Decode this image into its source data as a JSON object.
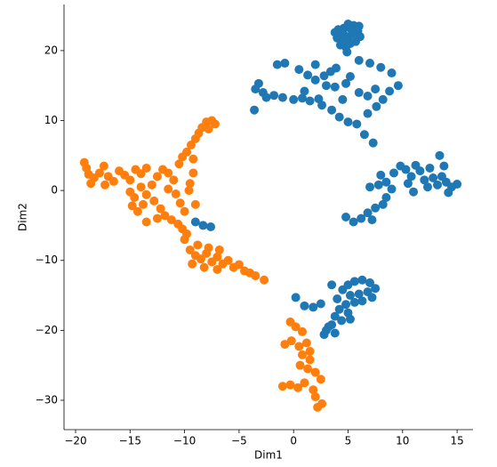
{
  "chart_data": {
    "type": "scatter",
    "x_label": "Dim1",
    "y_label": "Dim2",
    "xlim": [
      -21.06,
      16.46
    ],
    "ylim": [
      -34.2,
      26.6
    ],
    "xticks": [
      {
        "value": -20,
        "label": "−20"
      },
      {
        "value": -15,
        "label": "−15"
      },
      {
        "value": -10,
        "label": "−10"
      },
      {
        "value": -5,
        "label": "−5"
      },
      0,
      5,
      10,
      15
    ],
    "yticks": [
      {
        "value": -30,
        "label": "−30"
      },
      {
        "value": -20,
        "label": "−20"
      },
      {
        "value": -10,
        "label": "−10"
      },
      0,
      10,
      20
    ],
    "grid": false,
    "series": [
      {
        "color": "#1f77b4",
        "x": [
          4.2,
          4.6,
          5.0,
          5.5,
          6.0,
          4.0,
          4.5,
          5.0,
          5.4,
          5.9,
          3.8,
          4.3,
          4.8,
          5.2,
          4.6,
          6.1,
          5.7,
          4.9,
          4.1,
          5.3,
          -3.5,
          -3.2,
          -2.8,
          -3.6,
          -2.5,
          -1.8,
          -1.0,
          0.0,
          0.8,
          1.5,
          2.3,
          2.6,
          -1.5,
          -0.8,
          0.5,
          1.3,
          2.0,
          2.8,
          3.4,
          3.9,
          3.0,
          3.8,
          4.5,
          3.5,
          4.2,
          5.0,
          5.8,
          6.5,
          7.3,
          6.0,
          7.0,
          8.0,
          9.0,
          9.6,
          8.8,
          8.2,
          7.6,
          6.8,
          6.0,
          6.8,
          7.5,
          5.2,
          4.8,
          2.0,
          1.0,
          7.0,
          7.8,
          8.5,
          9.2,
          9.8,
          10.3,
          10.8,
          11.2,
          11.6,
          12.0,
          12.3,
          12.8,
          13.2,
          13.6,
          14.0,
          14.5,
          15.0,
          13.8,
          13.4,
          12.5,
          10.5,
          9.0,
          11.0,
          14.2,
          8.0,
          4.8,
          5.5,
          6.2,
          6.8,
          7.5,
          8.2,
          8.5,
          7.2,
          -9.0,
          -8.3,
          -7.6,
          5.0,
          5.6,
          6.3,
          7.0,
          7.5,
          6.8,
          6.0,
          5.2,
          4.5,
          4.0,
          4.8,
          5.6,
          6.3,
          7.2,
          4.2,
          5.0,
          3.8,
          4.4,
          5.2,
          3.5,
          3.0,
          3.8,
          2.8,
          3.2,
          3.5,
          0.2,
          1.0,
          1.8,
          2.5
        ],
        "y": [
          22.5,
          23.2,
          23.8,
          23.6,
          23.5,
          21.8,
          21.5,
          21.9,
          22.4,
          22.8,
          22.6,
          20.8,
          20.5,
          21.0,
          22.3,
          22.0,
          21.3,
          19.8,
          23.0,
          23.0,
          14.5,
          15.3,
          14.0,
          11.5,
          13.3,
          13.6,
          13.3,
          13.0,
          13.2,
          12.8,
          13.1,
          12.2,
          18.0,
          18.2,
          17.3,
          16.5,
          15.8,
          16.4,
          17.0,
          17.5,
          15.0,
          14.8,
          13.0,
          11.5,
          10.5,
          9.8,
          9.5,
          8.0,
          6.8,
          18.6,
          18.2,
          17.6,
          16.8,
          15.0,
          14.2,
          13.0,
          12.0,
          11.0,
          14.0,
          13.5,
          14.5,
          16.3,
          15.3,
          18.0,
          14.2,
          0.5,
          0.8,
          1.2,
          2.5,
          3.5,
          3.0,
          2.0,
          3.6,
          2.8,
          1.5,
          0.5,
          1.8,
          0.8,
          2.0,
          1.2,
          0.5,
          0.9,
          3.5,
          5.0,
          3.2,
          1.0,
          0.2,
          -0.2,
          -0.3,
          2.2,
          -3.8,
          -4.5,
          -4.0,
          -3.2,
          -2.5,
          -2.0,
          -1.0,
          -4.2,
          -4.5,
          -5.0,
          -5.2,
          -13.5,
          -13.0,
          -12.8,
          -13.2,
          -14.0,
          -14.5,
          -14.8,
          -15.0,
          -14.2,
          -15.5,
          -16.3,
          -16.0,
          -15.8,
          -15.3,
          -17.0,
          -17.5,
          -18.0,
          -18.6,
          -18.4,
          -19.2,
          -20.0,
          -20.4,
          -20.6,
          -19.5,
          -13.5,
          -15.3,
          -16.5,
          -16.7,
          -16.2
        ]
      },
      {
        "color": "#ff7f0e",
        "x": [
          -19.2,
          -19.0,
          -18.8,
          -18.3,
          -17.8,
          -17.4,
          -17.0,
          -16.5,
          -16.0,
          -15.5,
          -15.0,
          -14.5,
          -14.0,
          -13.5,
          -18.6,
          -17.3,
          -15.0,
          -14.6,
          -14.8,
          -14.3,
          -13.8,
          -13.5,
          -13.0,
          -12.5,
          -12.0,
          -11.5,
          -11.0,
          -12.8,
          -12.2,
          -11.8,
          -11.2,
          -10.6,
          -10.2,
          -9.8,
          -10.0,
          -10.4,
          -10.8,
          -9.5,
          -9.2,
          -9.6,
          -9.0,
          -12.5,
          -13.5,
          -14.0,
          -11.5,
          -10.0,
          -10.5,
          -10.2,
          -9.8,
          -9.4,
          -9.0,
          -8.7,
          -8.4,
          -8.0,
          -7.5,
          -7.2,
          -7.8,
          -9.2,
          -9.5,
          -9.0,
          -8.5,
          -8.0,
          -7.5,
          -7.0,
          -6.5,
          -6.0,
          -5.5,
          -5.0,
          -4.5,
          -4.0,
          -3.5,
          -2.7,
          -8.8,
          -7.8,
          -6.8,
          -8.2,
          -7.0,
          -9.3,
          -0.3,
          0.2,
          0.8,
          -0.8,
          -0.2,
          0.5,
          1.2,
          0.8,
          1.5,
          0.6,
          1.3,
          2.0,
          -1.0,
          -0.3,
          0.4,
          1.0,
          1.8,
          2.5,
          2.0,
          2.6,
          2.2,
          1.5
        ],
        "y": [
          4.0,
          3.2,
          2.3,
          1.8,
          2.5,
          3.5,
          2.0,
          1.3,
          2.8,
          2.2,
          1.5,
          3.0,
          2.4,
          3.2,
          1.0,
          0.8,
          -0.2,
          -1.0,
          -2.2,
          -3.0,
          -2.0,
          -0.6,
          0.8,
          2.0,
          3.0,
          2.5,
          1.5,
          -1.5,
          -2.6,
          -3.6,
          -4.2,
          -4.8,
          -5.5,
          -6.2,
          -3.0,
          -1.8,
          -0.5,
          1.0,
          2.5,
          0.0,
          -2.0,
          -4.0,
          -4.5,
          0.5,
          0.2,
          -7.0,
          3.8,
          4.8,
          5.5,
          6.5,
          7.4,
          8.2,
          9.0,
          9.8,
          10.0,
          9.5,
          8.8,
          4.5,
          -8.5,
          -9.3,
          -9.8,
          -9.0,
          -10.2,
          -9.5,
          -10.5,
          -10.0,
          -11.0,
          -10.6,
          -11.5,
          -11.8,
          -12.2,
          -12.8,
          -7.8,
          -8.2,
          -8.5,
          -11.0,
          -11.3,
          -10.5,
          -18.8,
          -19.5,
          -20.2,
          -22.0,
          -21.5,
          -22.3,
          -21.8,
          -23.5,
          -24.2,
          -25.0,
          -25.5,
          -26.0,
          -28.0,
          -27.8,
          -28.2,
          -27.5,
          -28.5,
          -27.0,
          -29.5,
          -30.5,
          -31.0,
          -23.0
        ]
      }
    ]
  }
}
